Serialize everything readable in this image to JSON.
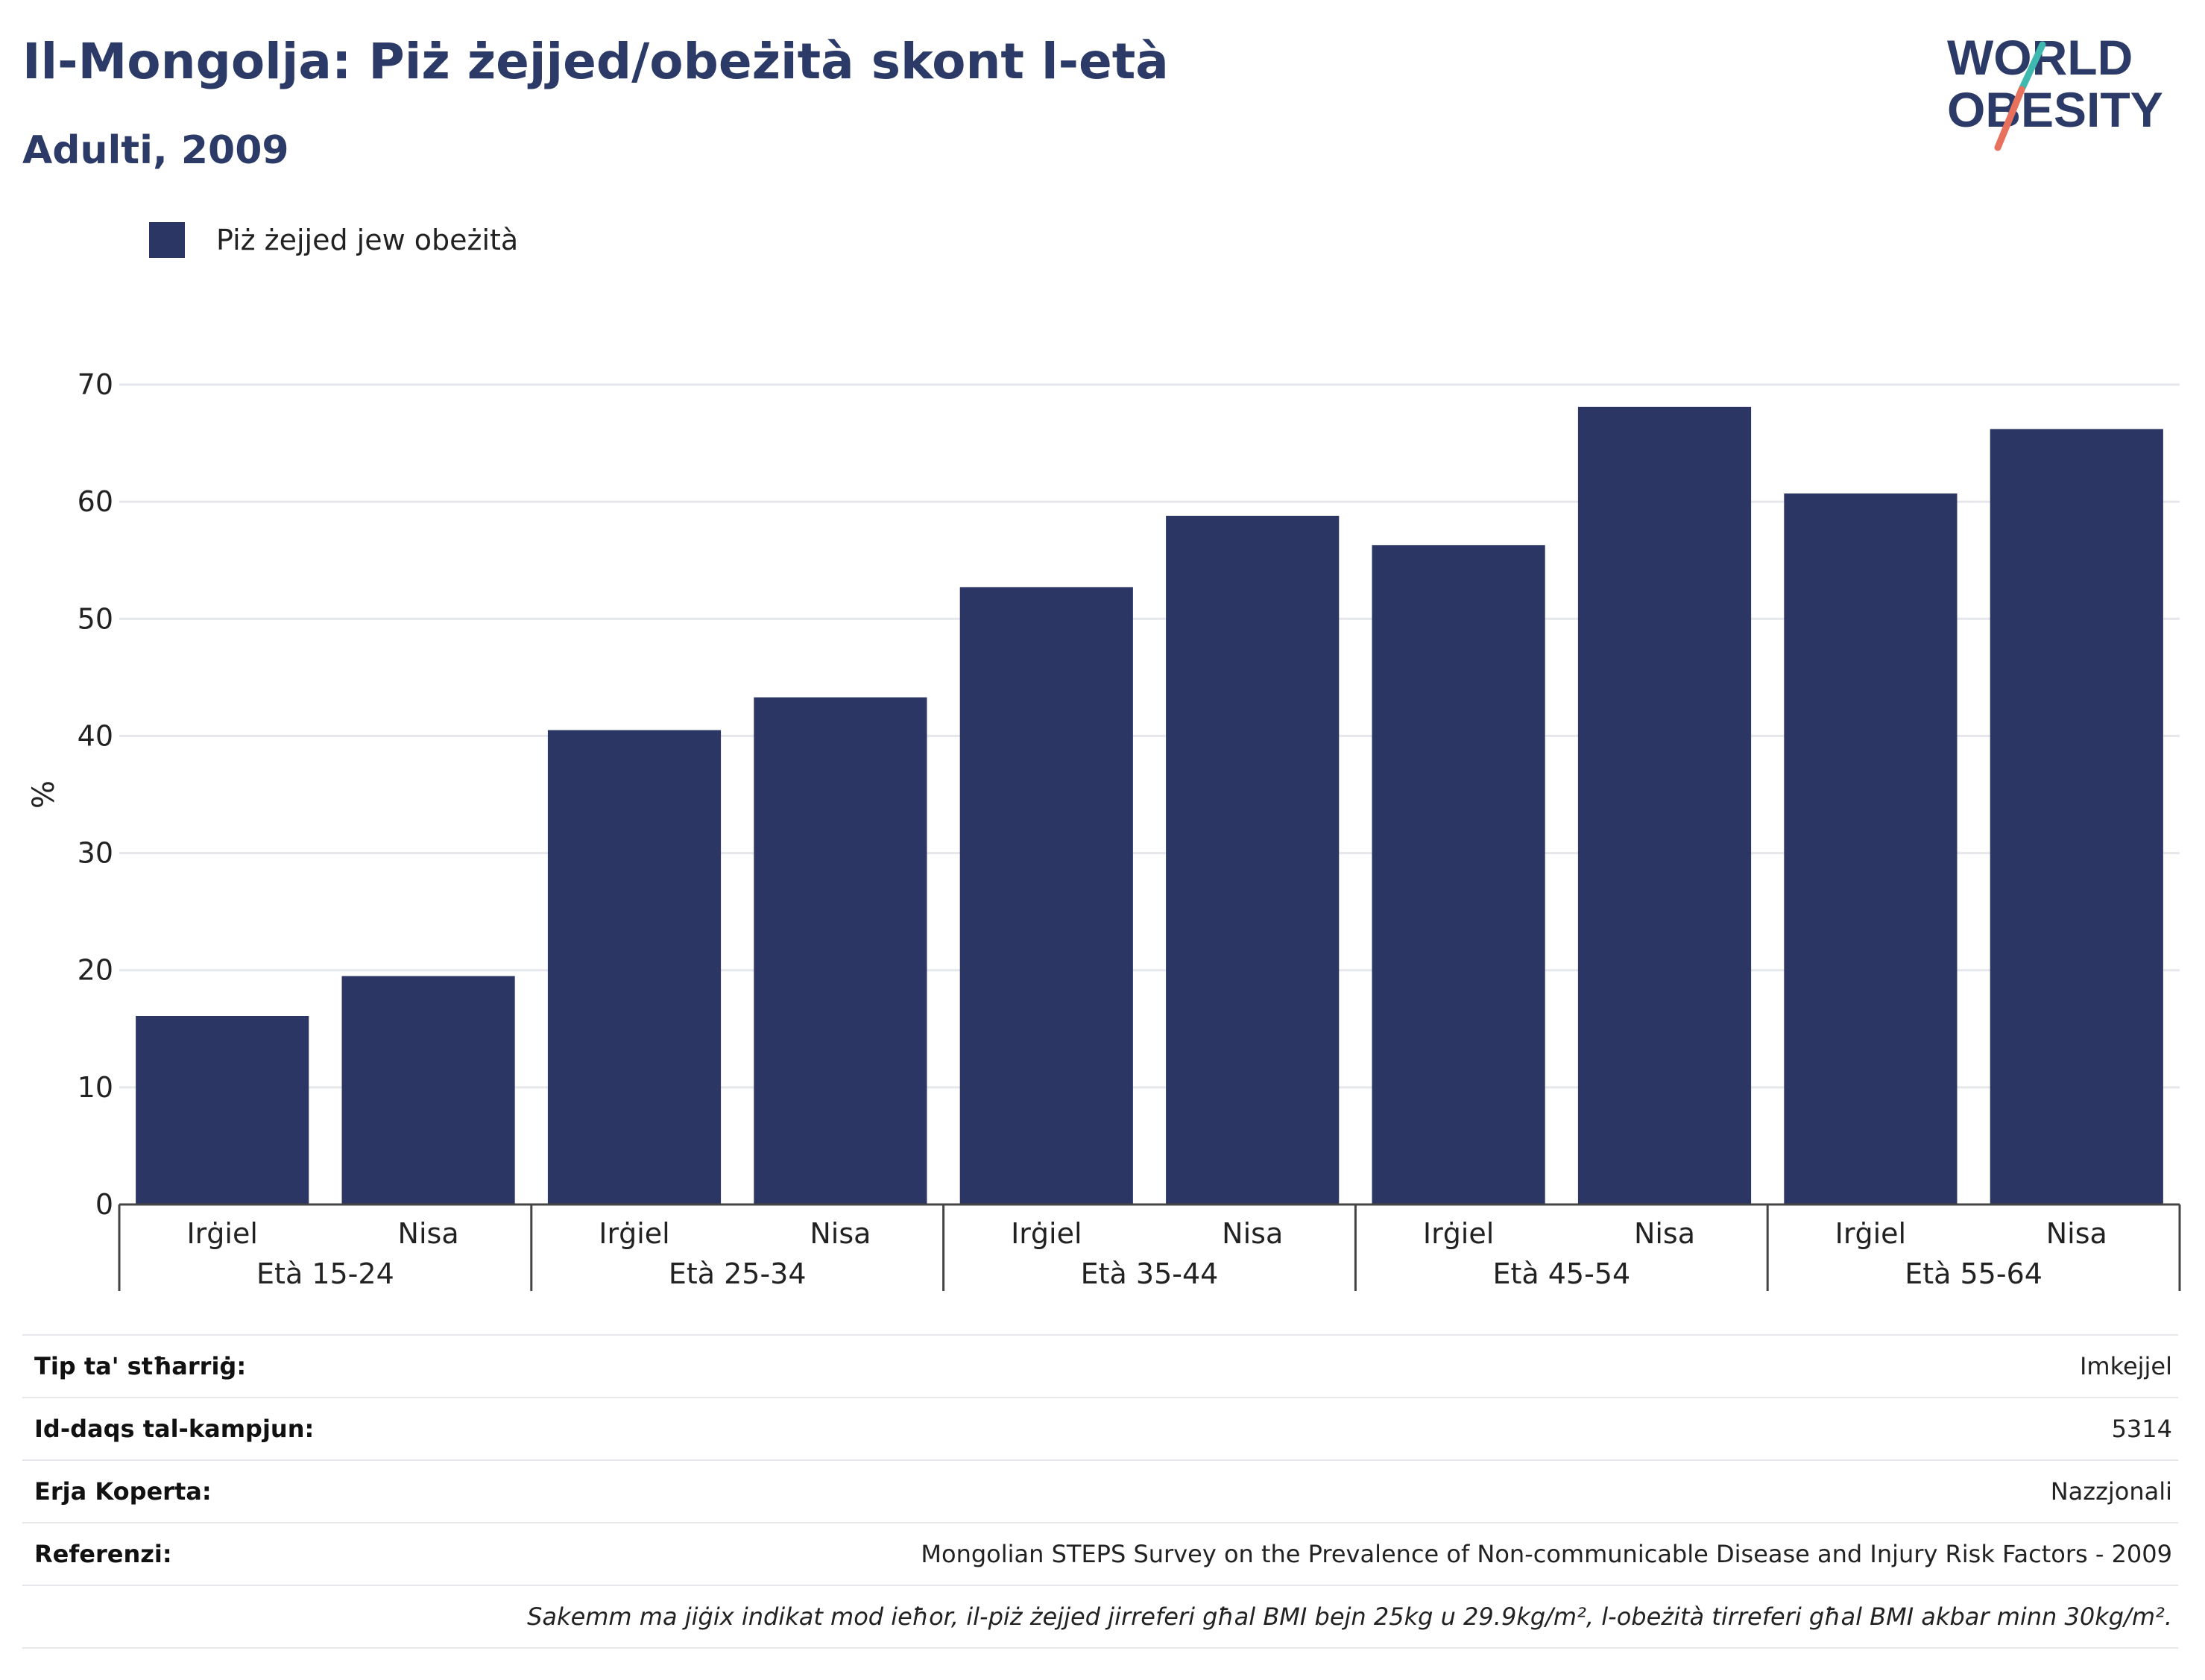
{
  "header": {
    "title": "Il-Mongolja: Piż żejjed/obeżità skont l-età",
    "subtitle": "Adulti, 2009"
  },
  "logo": {
    "line1": "WORLD",
    "line2": "OBESITY"
  },
  "colors": {
    "bar": "#2b3664",
    "title": "#2b3a67",
    "grid": "#e5e7eb",
    "logo_teal": "#3fb8b0",
    "logo_coral": "#e8715e"
  },
  "chart_data": {
    "type": "bar",
    "title": "Il-Mongolja: Piż żejjed/obeżità skont l-età",
    "subtitle": "Adulti, 2009",
    "ylabel": "%",
    "xlabel": "",
    "ylim": [
      0,
      70
    ],
    "yticks": [
      0,
      10,
      20,
      30,
      40,
      50,
      60,
      70
    ],
    "grid": true,
    "legend_placement": "top-left",
    "groups": [
      "Età 15-24",
      "Età 25-34",
      "Età 35-44",
      "Età 45-54",
      "Età 55-64"
    ],
    "subcategories": [
      "Irġiel",
      "Nisa"
    ],
    "series": [
      {
        "name": "Piż żejjed jew obeżità",
        "values": [
          16.1,
          19.5,
          40.5,
          43.3,
          52.7,
          58.8,
          56.3,
          68.1,
          60.7,
          66.2
        ]
      }
    ]
  },
  "info": [
    {
      "key": "Tip ta' stħarriġ:",
      "value": "Imkejjel"
    },
    {
      "key": "Id-daqs tal-kampjun:",
      "value": "5314"
    },
    {
      "key": "Erja Koperta:",
      "value": "Nazzjonali"
    },
    {
      "key": "Referenzi:",
      "value": "Mongolian STEPS Survey on the Prevalence of Non-communicable Disease and Injury Risk Factors - 2009"
    }
  ],
  "note": "Sakemm ma jiġix indikat mod ieħor, il-piż żejjed jirreferi għal BMI bejn 25kg u 29.9kg/m², l-obeżità tirreferi għal BMI akbar minn 30kg/m²."
}
